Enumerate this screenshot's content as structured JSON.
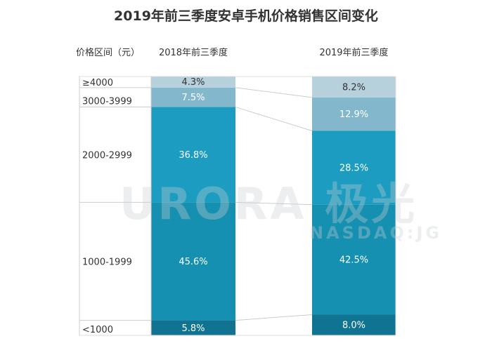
{
  "chart_data": {
    "type": "bar",
    "stacked": true,
    "title": "2019年前三季度安卓手机价格销售区间变化",
    "category_header": "价格区间（元）",
    "categories": [
      "2018年前三季度",
      "2019年前三季度"
    ],
    "segments": [
      "<1000",
      "1000-1999",
      "2000-2999",
      "3000-3999",
      "≥4000"
    ],
    "series": [
      {
        "name": "<1000",
        "values": [
          5.8,
          8.0
        ],
        "labels": [
          "5.8%",
          "8.0%"
        ],
        "color": "#0f7391",
        "text_color": "#ffffff"
      },
      {
        "name": "1000-1999",
        "values": [
          45.6,
          42.5
        ],
        "labels": [
          "45.6%",
          "42.5%"
        ],
        "color": "#1690b1",
        "text_color": "#ffffff"
      },
      {
        "name": "2000-2999",
        "values": [
          36.8,
          28.5
        ],
        "labels": [
          "36.8%",
          "28.5%"
        ],
        "color": "#1b9cc0",
        "text_color": "#ffffff"
      },
      {
        "name": "3000-3999",
        "values": [
          7.5,
          12.9
        ],
        "labels": [
          "7.5%",
          "12.9%"
        ],
        "color": "#83b8cc",
        "text_color": "#ffffff"
      },
      {
        "name": "≥4000",
        "values": [
          4.3,
          8.2
        ],
        "labels": [
          "4.3%",
          "8.2%"
        ],
        "color": "#b6d0dc",
        "text_color": "#333333"
      }
    ],
    "unit": "%",
    "ylim": [
      0,
      100
    ],
    "grid": false,
    "legend": "left-column"
  },
  "watermark": {
    "brand": "URORA 极光",
    "ticker": "NASDAQ:JG"
  }
}
